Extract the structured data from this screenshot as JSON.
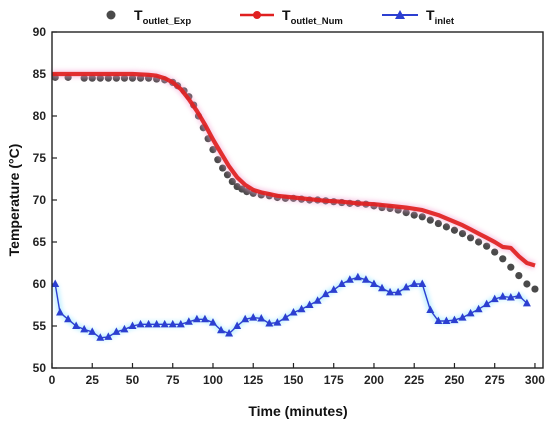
{
  "chart_data": {
    "type": "line",
    "xlabel": "Time (minutes)",
    "ylabel": "Temperature (°C)",
    "xlim": [
      0,
      305
    ],
    "ylim": [
      50,
      90
    ],
    "xticks": [
      0,
      25,
      50,
      75,
      100,
      125,
      150,
      175,
      200,
      225,
      250,
      275,
      300
    ],
    "yticks": [
      50,
      55,
      60,
      65,
      70,
      75,
      80,
      85,
      90
    ],
    "grid": false,
    "legend_position": "top",
    "series": [
      {
        "name_main": "T",
        "name_sub": "outlet_Exp",
        "style": "scatter",
        "color": "#4a4a4a",
        "marker": "circle",
        "x": [
          2,
          10,
          20,
          25,
          30,
          35,
          40,
          45,
          50,
          55,
          60,
          65,
          70,
          75,
          78,
          82,
          85,
          88,
          91,
          94,
          97,
          100,
          103,
          106,
          109,
          112,
          115,
          118,
          121,
          125,
          130,
          135,
          140,
          145,
          150,
          155,
          160,
          165,
          170,
          175,
          180,
          185,
          190,
          195,
          200,
          205,
          210,
          215,
          220,
          225,
          230,
          235,
          240,
          245,
          250,
          255,
          260,
          265,
          270,
          275,
          280,
          285,
          290,
          295,
          300
        ],
        "values": [
          84.6,
          84.6,
          84.5,
          84.5,
          84.5,
          84.5,
          84.5,
          84.5,
          84.5,
          84.5,
          84.5,
          84.4,
          84.3,
          84.0,
          83.6,
          83.0,
          82.3,
          81.3,
          80.0,
          78.6,
          77.3,
          76.0,
          74.8,
          73.8,
          73.0,
          72.2,
          71.6,
          71.3,
          71.0,
          70.8,
          70.6,
          70.5,
          70.3,
          70.2,
          70.2,
          70.1,
          70.0,
          70.0,
          69.9,
          69.8,
          69.7,
          69.6,
          69.6,
          69.5,
          69.3,
          69.1,
          69.0,
          68.8,
          68.5,
          68.2,
          68.0,
          67.6,
          67.2,
          66.8,
          66.4,
          66.0,
          65.5,
          65.0,
          64.5,
          63.8,
          63.0,
          62.0,
          61.0,
          60.0,
          59.4
        ]
      },
      {
        "name_main": "T",
        "name_sub": "outlet_Num",
        "style": "line",
        "color": "#e02020",
        "marker": "circle",
        "x": [
          0,
          10,
          20,
          30,
          40,
          50,
          60,
          65,
          70,
          75,
          80,
          85,
          90,
          95,
          100,
          105,
          110,
          115,
          120,
          125,
          130,
          135,
          140,
          150,
          160,
          170,
          180,
          190,
          200,
          210,
          220,
          230,
          240,
          250,
          255,
          260,
          265,
          270,
          275,
          280,
          285,
          290,
          295,
          300
        ],
        "values": [
          85.0,
          85.0,
          85.0,
          85.0,
          85.0,
          85.0,
          84.9,
          84.8,
          84.5,
          84.0,
          83.2,
          82.0,
          80.6,
          79.0,
          77.2,
          75.6,
          74.0,
          72.7,
          71.8,
          71.2,
          70.9,
          70.7,
          70.5,
          70.3,
          70.1,
          69.9,
          69.8,
          69.6,
          69.5,
          69.3,
          69.1,
          68.8,
          68.2,
          67.4,
          67.0,
          66.5,
          66.0,
          65.5,
          65.0,
          64.4,
          64.3,
          63.3,
          62.5,
          62.2
        ]
      },
      {
        "name_main": "T",
        "name_sub": "inlet",
        "style": "line",
        "color": "#2c3fd1",
        "marker": "triangle",
        "x": [
          2,
          5,
          10,
          15,
          20,
          25,
          30,
          35,
          40,
          45,
          50,
          55,
          60,
          65,
          70,
          75,
          80,
          85,
          90,
          95,
          100,
          105,
          110,
          115,
          120,
          125,
          130,
          135,
          140,
          145,
          150,
          155,
          160,
          165,
          170,
          175,
          180,
          185,
          190,
          195,
          200,
          205,
          210,
          215,
          220,
          225,
          230,
          235,
          240,
          245,
          250,
          255,
          260,
          265,
          270,
          275,
          280,
          285,
          290,
          295
        ],
        "values": [
          60.0,
          56.6,
          55.8,
          55.0,
          54.6,
          54.3,
          53.6,
          53.7,
          54.3,
          54.6,
          55.0,
          55.2,
          55.2,
          55.2,
          55.2,
          55.2,
          55.2,
          55.5,
          55.8,
          55.8,
          55.4,
          54.5,
          54.1,
          55.0,
          55.8,
          56.0,
          55.9,
          55.3,
          55.4,
          56.0,
          56.6,
          57.0,
          57.5,
          58.0,
          58.8,
          59.3,
          60.0,
          60.5,
          60.8,
          60.5,
          60.0,
          59.5,
          59.0,
          59.0,
          59.6,
          60.0,
          60.0,
          56.9,
          55.6,
          55.6,
          55.7,
          56.0,
          56.5,
          57.0,
          57.6,
          58.2,
          58.5,
          58.4,
          58.6,
          57.7
        ]
      }
    ]
  }
}
